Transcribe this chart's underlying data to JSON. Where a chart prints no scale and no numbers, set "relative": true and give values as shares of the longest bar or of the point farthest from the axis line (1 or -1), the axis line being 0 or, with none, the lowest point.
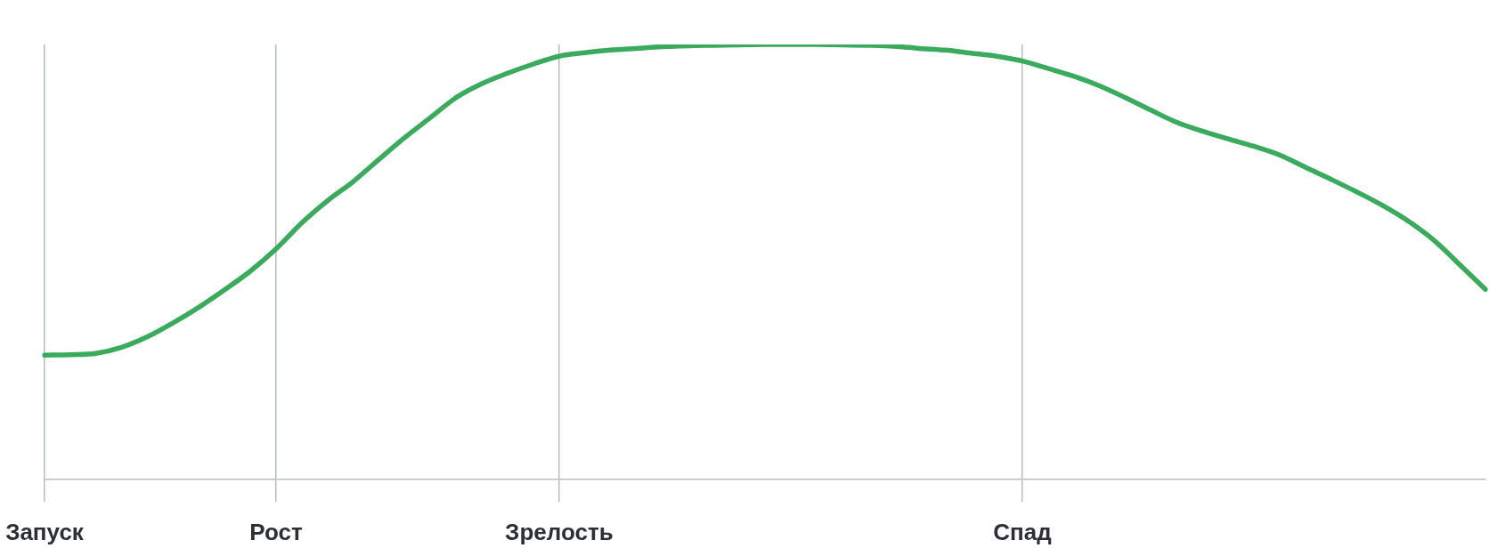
{
  "chart_data": {
    "type": "line",
    "relative": true,
    "categories": [
      "Запуск",
      null,
      null,
      null,
      null,
      null,
      null,
      null,
      null,
      "Рост",
      null,
      null,
      null,
      null,
      null,
      null,
      null,
      null,
      null,
      null,
      "Зрелость",
      null,
      null,
      null,
      null,
      null,
      null,
      null,
      null,
      null,
      null,
      null,
      null,
      null,
      null,
      null,
      null,
      null,
      "Спад",
      null,
      null,
      null,
      null,
      null,
      null,
      null,
      null,
      null,
      null,
      null,
      null,
      null,
      null,
      null,
      null,
      null,
      null
    ],
    "series": [
      {
        "color": "#3aaa5c",
        "values": [
          0.286,
          0.287,
          0.29,
          0.304,
          0.328,
          0.36,
          0.396,
          0.436,
          0.479,
          0.53,
          0.59,
          0.641,
          0.685,
          0.736,
          0.786,
          0.832,
          0.878,
          0.91,
          0.934,
          0.955,
          0.973,
          0.981,
          0.987,
          0.991,
          0.995,
          0.997,
          0.998,
          0.999,
          1,
          1,
          1,
          0.999,
          0.998,
          0.996,
          0.991,
          0.987,
          0.98,
          0.973,
          0.962,
          0.945,
          0.927,
          0.905,
          0.878,
          0.849,
          0.821,
          0.801,
          0.783,
          0.766,
          0.746,
          0.718,
          0.69,
          0.661,
          0.63,
          0.594,
          0.55,
          0.494,
          0.437
        ]
      }
    ],
    "grid": "x",
    "marker": "none",
    "line_style": "solid"
  }
}
